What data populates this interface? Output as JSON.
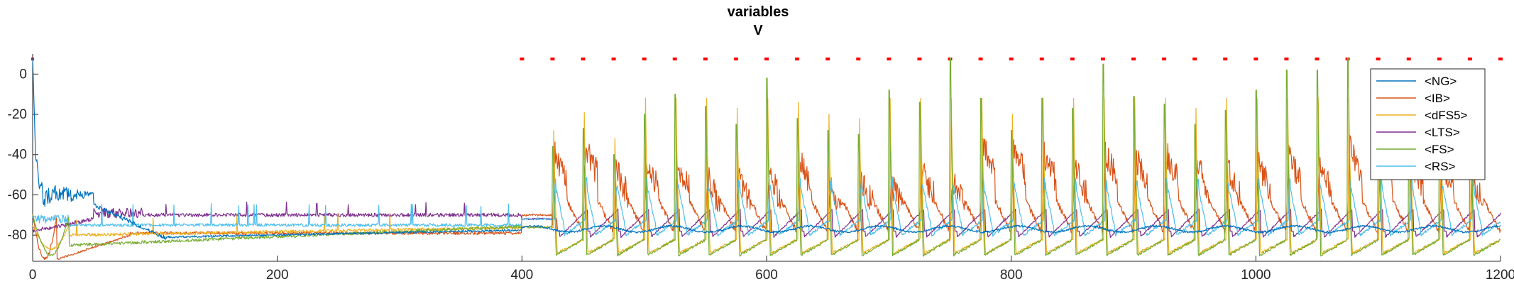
{
  "chart_data": {
    "type": "line",
    "title": "variables",
    "subtitle": "V",
    "xlabel": "",
    "ylabel": "",
    "xlim": [
      0,
      1200
    ],
    "ylim": [
      -93,
      10
    ],
    "xticks": [
      0,
      200,
      400,
      600,
      800,
      1000,
      1200
    ],
    "yticks": [
      0,
      -20,
      -40,
      -60,
      -80
    ],
    "grid": false,
    "legend_position": "top-right",
    "series": [
      {
        "name": "<NG>",
        "color": "#0072BD"
      },
      {
        "name": "<IB>",
        "color": "#D95319"
      },
      {
        "name": "<dFS5>",
        "color": "#EDB120"
      },
      {
        "name": "<LTS>",
        "color": "#7E2F8E"
      },
      {
        "name": "<FS>",
        "color": "#77AC30"
      },
      {
        "name": "<RS>",
        "color": "#4DBEEE"
      }
    ],
    "spike_times": [
      425,
      450,
      475,
      500,
      525,
      550,
      575,
      600,
      625,
      650,
      675,
      700,
      725,
      750,
      775,
      800,
      825,
      850,
      875,
      900,
      925,
      950,
      975,
      1000,
      1025,
      1050,
      1075,
      1100,
      1125,
      1150,
      1175
    ],
    "fs_spike_peaks": [
      -36,
      -27,
      -40,
      -20,
      -10,
      -16,
      -25,
      -2,
      -22,
      -28,
      -30,
      -8,
      -14,
      8,
      -12,
      -28,
      -12,
      -17,
      5,
      -11,
      -15,
      -25,
      -18,
      -8,
      2,
      2,
      8,
      -11,
      -2,
      2,
      -2
    ],
    "ib_burst_peaks": [
      -40,
      -37,
      -47,
      -45,
      -44,
      -52,
      -52,
      -50,
      -43,
      -55,
      -52,
      -55,
      -47,
      -52,
      -36,
      -37,
      -40,
      -47,
      -40,
      -42,
      -40,
      -45,
      -47,
      -45,
      -42,
      -45,
      -37,
      -40,
      -43,
      -45,
      -52
    ],
    "event_markers": {
      "color": "#FF0000",
      "y": 7.5,
      "start": 400,
      "end": 1200,
      "step": 25
    }
  }
}
